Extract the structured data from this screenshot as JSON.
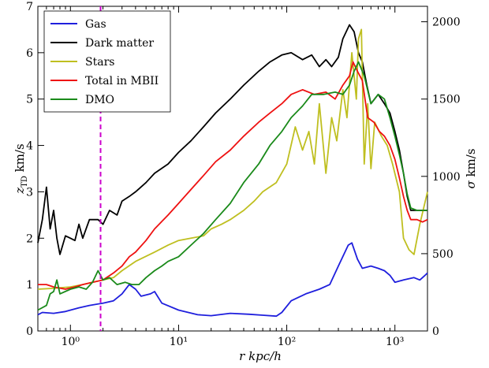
{
  "chart_data": {
    "type": "line",
    "xlabel": "r  kpc/h",
    "ylabel_left": "z_TD km/s",
    "ylabel_right": "σ km/s",
    "xscale": "log",
    "xlim": [
      0.5,
      2000
    ],
    "ylim_left": [
      0,
      7
    ],
    "ylim_right": [
      0,
      2100
    ],
    "x_ticks": [
      {
        "value": 1,
        "label": "10⁰"
      },
      {
        "value": 10,
        "label": "10¹"
      },
      {
        "value": 100,
        "label": "10²"
      },
      {
        "value": 1000,
        "label": "10³"
      }
    ],
    "y_left_ticks": [
      0,
      1,
      2,
      3,
      4,
      5,
      6,
      7
    ],
    "y_right_ticks": [
      0,
      500,
      1000,
      1500,
      2000
    ],
    "vline": {
      "x": 1.9,
      "color": "#cc00cc",
      "style": "dashed"
    },
    "grid": false,
    "legend_position": "top-left",
    "series": [
      {
        "name": "Gas",
        "color": "#1f1fdd",
        "points": [
          [
            0.5,
            0.35
          ],
          [
            0.55,
            0.4
          ],
          [
            0.7,
            0.38
          ],
          [
            0.9,
            0.42
          ],
          [
            1.2,
            0.5
          ],
          [
            1.5,
            0.55
          ],
          [
            2.0,
            0.6
          ],
          [
            2.5,
            0.65
          ],
          [
            3.0,
            0.8
          ],
          [
            3.5,
            1.0
          ],
          [
            4.0,
            0.9
          ],
          [
            4.5,
            0.75
          ],
          [
            5.5,
            0.8
          ],
          [
            6.0,
            0.85
          ],
          [
            7,
            0.6
          ],
          [
            10,
            0.45
          ],
          [
            15,
            0.35
          ],
          [
            20,
            0.33
          ],
          [
            30,
            0.38
          ],
          [
            45,
            0.36
          ],
          [
            60,
            0.34
          ],
          [
            80,
            0.32
          ],
          [
            90,
            0.4
          ],
          [
            110,
            0.65
          ],
          [
            150,
            0.8
          ],
          [
            200,
            0.9
          ],
          [
            250,
            1.0
          ],
          [
            300,
            1.4
          ],
          [
            370,
            1.85
          ],
          [
            400,
            1.9
          ],
          [
            450,
            1.55
          ],
          [
            500,
            1.35
          ],
          [
            600,
            1.4
          ],
          [
            700,
            1.35
          ],
          [
            800,
            1.3
          ],
          [
            900,
            1.2
          ],
          [
            1000,
            1.05
          ],
          [
            1200,
            1.1
          ],
          [
            1500,
            1.15
          ],
          [
            1700,
            1.1
          ],
          [
            1900,
            1.2
          ],
          [
            2000,
            1.25
          ]
        ]
      },
      {
        "name": "Dark matter",
        "color": "#000000",
        "points": [
          [
            0.5,
            1.9
          ],
          [
            0.55,
            2.4
          ],
          [
            0.6,
            3.1
          ],
          [
            0.65,
            2.2
          ],
          [
            0.7,
            2.6
          ],
          [
            0.75,
            2.0
          ],
          [
            0.8,
            1.65
          ],
          [
            0.9,
            2.05
          ],
          [
            1.0,
            2.0
          ],
          [
            1.1,
            1.95
          ],
          [
            1.2,
            2.3
          ],
          [
            1.3,
            2.0
          ],
          [
            1.5,
            2.4
          ],
          [
            1.8,
            2.4
          ],
          [
            2.0,
            2.3
          ],
          [
            2.3,
            2.6
          ],
          [
            2.7,
            2.5
          ],
          [
            3.0,
            2.8
          ],
          [
            3.5,
            2.9
          ],
          [
            4.0,
            3.0
          ],
          [
            5,
            3.2
          ],
          [
            6,
            3.4
          ],
          [
            8,
            3.6
          ],
          [
            10,
            3.85
          ],
          [
            13,
            4.1
          ],
          [
            17,
            4.4
          ],
          [
            22,
            4.7
          ],
          [
            30,
            5.0
          ],
          [
            40,
            5.3
          ],
          [
            55,
            5.6
          ],
          [
            70,
            5.8
          ],
          [
            90,
            5.95
          ],
          [
            110,
            6.0
          ],
          [
            140,
            5.85
          ],
          [
            170,
            5.95
          ],
          [
            200,
            5.7
          ],
          [
            230,
            5.85
          ],
          [
            260,
            5.7
          ],
          [
            300,
            5.9
          ],
          [
            330,
            6.3
          ],
          [
            380,
            6.6
          ],
          [
            420,
            6.45
          ],
          [
            460,
            6.0
          ],
          [
            500,
            5.8
          ],
          [
            550,
            5.3
          ],
          [
            600,
            4.9
          ],
          [
            700,
            5.1
          ],
          [
            800,
            4.9
          ],
          [
            900,
            4.7
          ],
          [
            1000,
            4.3
          ],
          [
            1100,
            3.9
          ],
          [
            1200,
            3.4
          ],
          [
            1300,
            2.9
          ],
          [
            1400,
            2.6
          ],
          [
            1700,
            2.6
          ],
          [
            2000,
            2.6
          ]
        ]
      },
      {
        "name": "Stars",
        "color": "#bfbf20",
        "points": [
          [
            0.5,
            0.9
          ],
          [
            0.7,
            0.92
          ],
          [
            1.0,
            0.95
          ],
          [
            1.3,
            1.0
          ],
          [
            1.6,
            1.05
          ],
          [
            2.0,
            1.1
          ],
          [
            2.5,
            1.15
          ],
          [
            3,
            1.3
          ],
          [
            4,
            1.5
          ],
          [
            6,
            1.7
          ],
          [
            8,
            1.85
          ],
          [
            10,
            1.95
          ],
          [
            13,
            2.0
          ],
          [
            17,
            2.05
          ],
          [
            20,
            2.2
          ],
          [
            25,
            2.3
          ],
          [
            30,
            2.4
          ],
          [
            40,
            2.6
          ],
          [
            50,
            2.8
          ],
          [
            60,
            3.0
          ],
          [
            80,
            3.2
          ],
          [
            100,
            3.6
          ],
          [
            120,
            4.4
          ],
          [
            140,
            3.9
          ],
          [
            160,
            4.3
          ],
          [
            180,
            3.6
          ],
          [
            200,
            4.9
          ],
          [
            230,
            3.4
          ],
          [
            260,
            4.6
          ],
          [
            290,
            4.1
          ],
          [
            330,
            5.2
          ],
          [
            360,
            4.6
          ],
          [
            400,
            6.0
          ],
          [
            440,
            5.0
          ],
          [
            460,
            6.3
          ],
          [
            490,
            6.5
          ],
          [
            520,
            3.6
          ],
          [
            560,
            4.9
          ],
          [
            600,
            3.5
          ],
          [
            650,
            4.5
          ],
          [
            750,
            4.2
          ],
          [
            850,
            4.0
          ],
          [
            950,
            3.6
          ],
          [
            1100,
            3.0
          ],
          [
            1200,
            2.0
          ],
          [
            1350,
            1.75
          ],
          [
            1500,
            1.65
          ],
          [
            1700,
            2.3
          ],
          [
            2000,
            3.0
          ]
        ]
      },
      {
        "name": "Total in MBII",
        "color": "#ee1111",
        "points": [
          [
            0.5,
            1.0
          ],
          [
            0.6,
            1.0
          ],
          [
            0.7,
            0.95
          ],
          [
            0.9,
            0.9
          ],
          [
            1.1,
            0.95
          ],
          [
            1.3,
            1.0
          ],
          [
            1.6,
            1.05
          ],
          [
            2.0,
            1.1
          ],
          [
            2.5,
            1.25
          ],
          [
            3,
            1.4
          ],
          [
            3.5,
            1.6
          ],
          [
            4,
            1.7
          ],
          [
            5,
            1.95
          ],
          [
            6,
            2.2
          ],
          [
            8,
            2.5
          ],
          [
            10,
            2.75
          ],
          [
            13,
            3.05
          ],
          [
            17,
            3.35
          ],
          [
            22,
            3.65
          ],
          [
            30,
            3.9
          ],
          [
            40,
            4.2
          ],
          [
            55,
            4.5
          ],
          [
            70,
            4.7
          ],
          [
            90,
            4.9
          ],
          [
            110,
            5.1
          ],
          [
            140,
            5.2
          ],
          [
            180,
            5.1
          ],
          [
            230,
            5.15
          ],
          [
            280,
            5.0
          ],
          [
            330,
            5.3
          ],
          [
            380,
            5.5
          ],
          [
            410,
            5.8
          ],
          [
            450,
            5.6
          ],
          [
            500,
            5.4
          ],
          [
            560,
            4.6
          ],
          [
            640,
            4.5
          ],
          [
            720,
            4.3
          ],
          [
            800,
            4.2
          ],
          [
            900,
            4.0
          ],
          [
            1000,
            3.7
          ],
          [
            1100,
            3.3
          ],
          [
            1200,
            2.9
          ],
          [
            1300,
            2.6
          ],
          [
            1400,
            2.4
          ],
          [
            1600,
            2.4
          ],
          [
            1800,
            2.35
          ],
          [
            2000,
            2.4
          ]
        ]
      },
      {
        "name": "DMO",
        "color": "#1a8a1a",
        "points": [
          [
            0.5,
            0.45
          ],
          [
            0.6,
            0.55
          ],
          [
            0.65,
            0.8
          ],
          [
            0.7,
            0.85
          ],
          [
            0.75,
            1.1
          ],
          [
            0.8,
            0.8
          ],
          [
            1.0,
            0.9
          ],
          [
            1.2,
            0.95
          ],
          [
            1.4,
            0.9
          ],
          [
            1.6,
            1.05
          ],
          [
            1.8,
            1.3
          ],
          [
            2.0,
            1.1
          ],
          [
            2.3,
            1.15
          ],
          [
            2.7,
            1.0
          ],
          [
            3.2,
            1.05
          ],
          [
            3.7,
            1.0
          ],
          [
            4.3,
            1.0
          ],
          [
            5,
            1.15
          ],
          [
            6,
            1.3
          ],
          [
            7,
            1.4
          ],
          [
            8,
            1.5
          ],
          [
            10,
            1.6
          ],
          [
            13,
            1.85
          ],
          [
            17,
            2.1
          ],
          [
            22,
            2.4
          ],
          [
            30,
            2.75
          ],
          [
            40,
            3.2
          ],
          [
            55,
            3.6
          ],
          [
            70,
            4.0
          ],
          [
            90,
            4.3
          ],
          [
            110,
            4.6
          ],
          [
            140,
            4.85
          ],
          [
            170,
            5.1
          ],
          [
            220,
            5.1
          ],
          [
            280,
            5.15
          ],
          [
            330,
            5.1
          ],
          [
            380,
            5.3
          ],
          [
            420,
            5.6
          ],
          [
            460,
            5.8
          ],
          [
            520,
            5.5
          ],
          [
            600,
            4.9
          ],
          [
            700,
            5.1
          ],
          [
            800,
            5.0
          ],
          [
            900,
            4.6
          ],
          [
            1000,
            4.2
          ],
          [
            1100,
            3.8
          ],
          [
            1200,
            3.4
          ],
          [
            1300,
            2.95
          ],
          [
            1400,
            2.65
          ],
          [
            1600,
            2.6
          ],
          [
            2000,
            2.6
          ]
        ]
      }
    ]
  }
}
